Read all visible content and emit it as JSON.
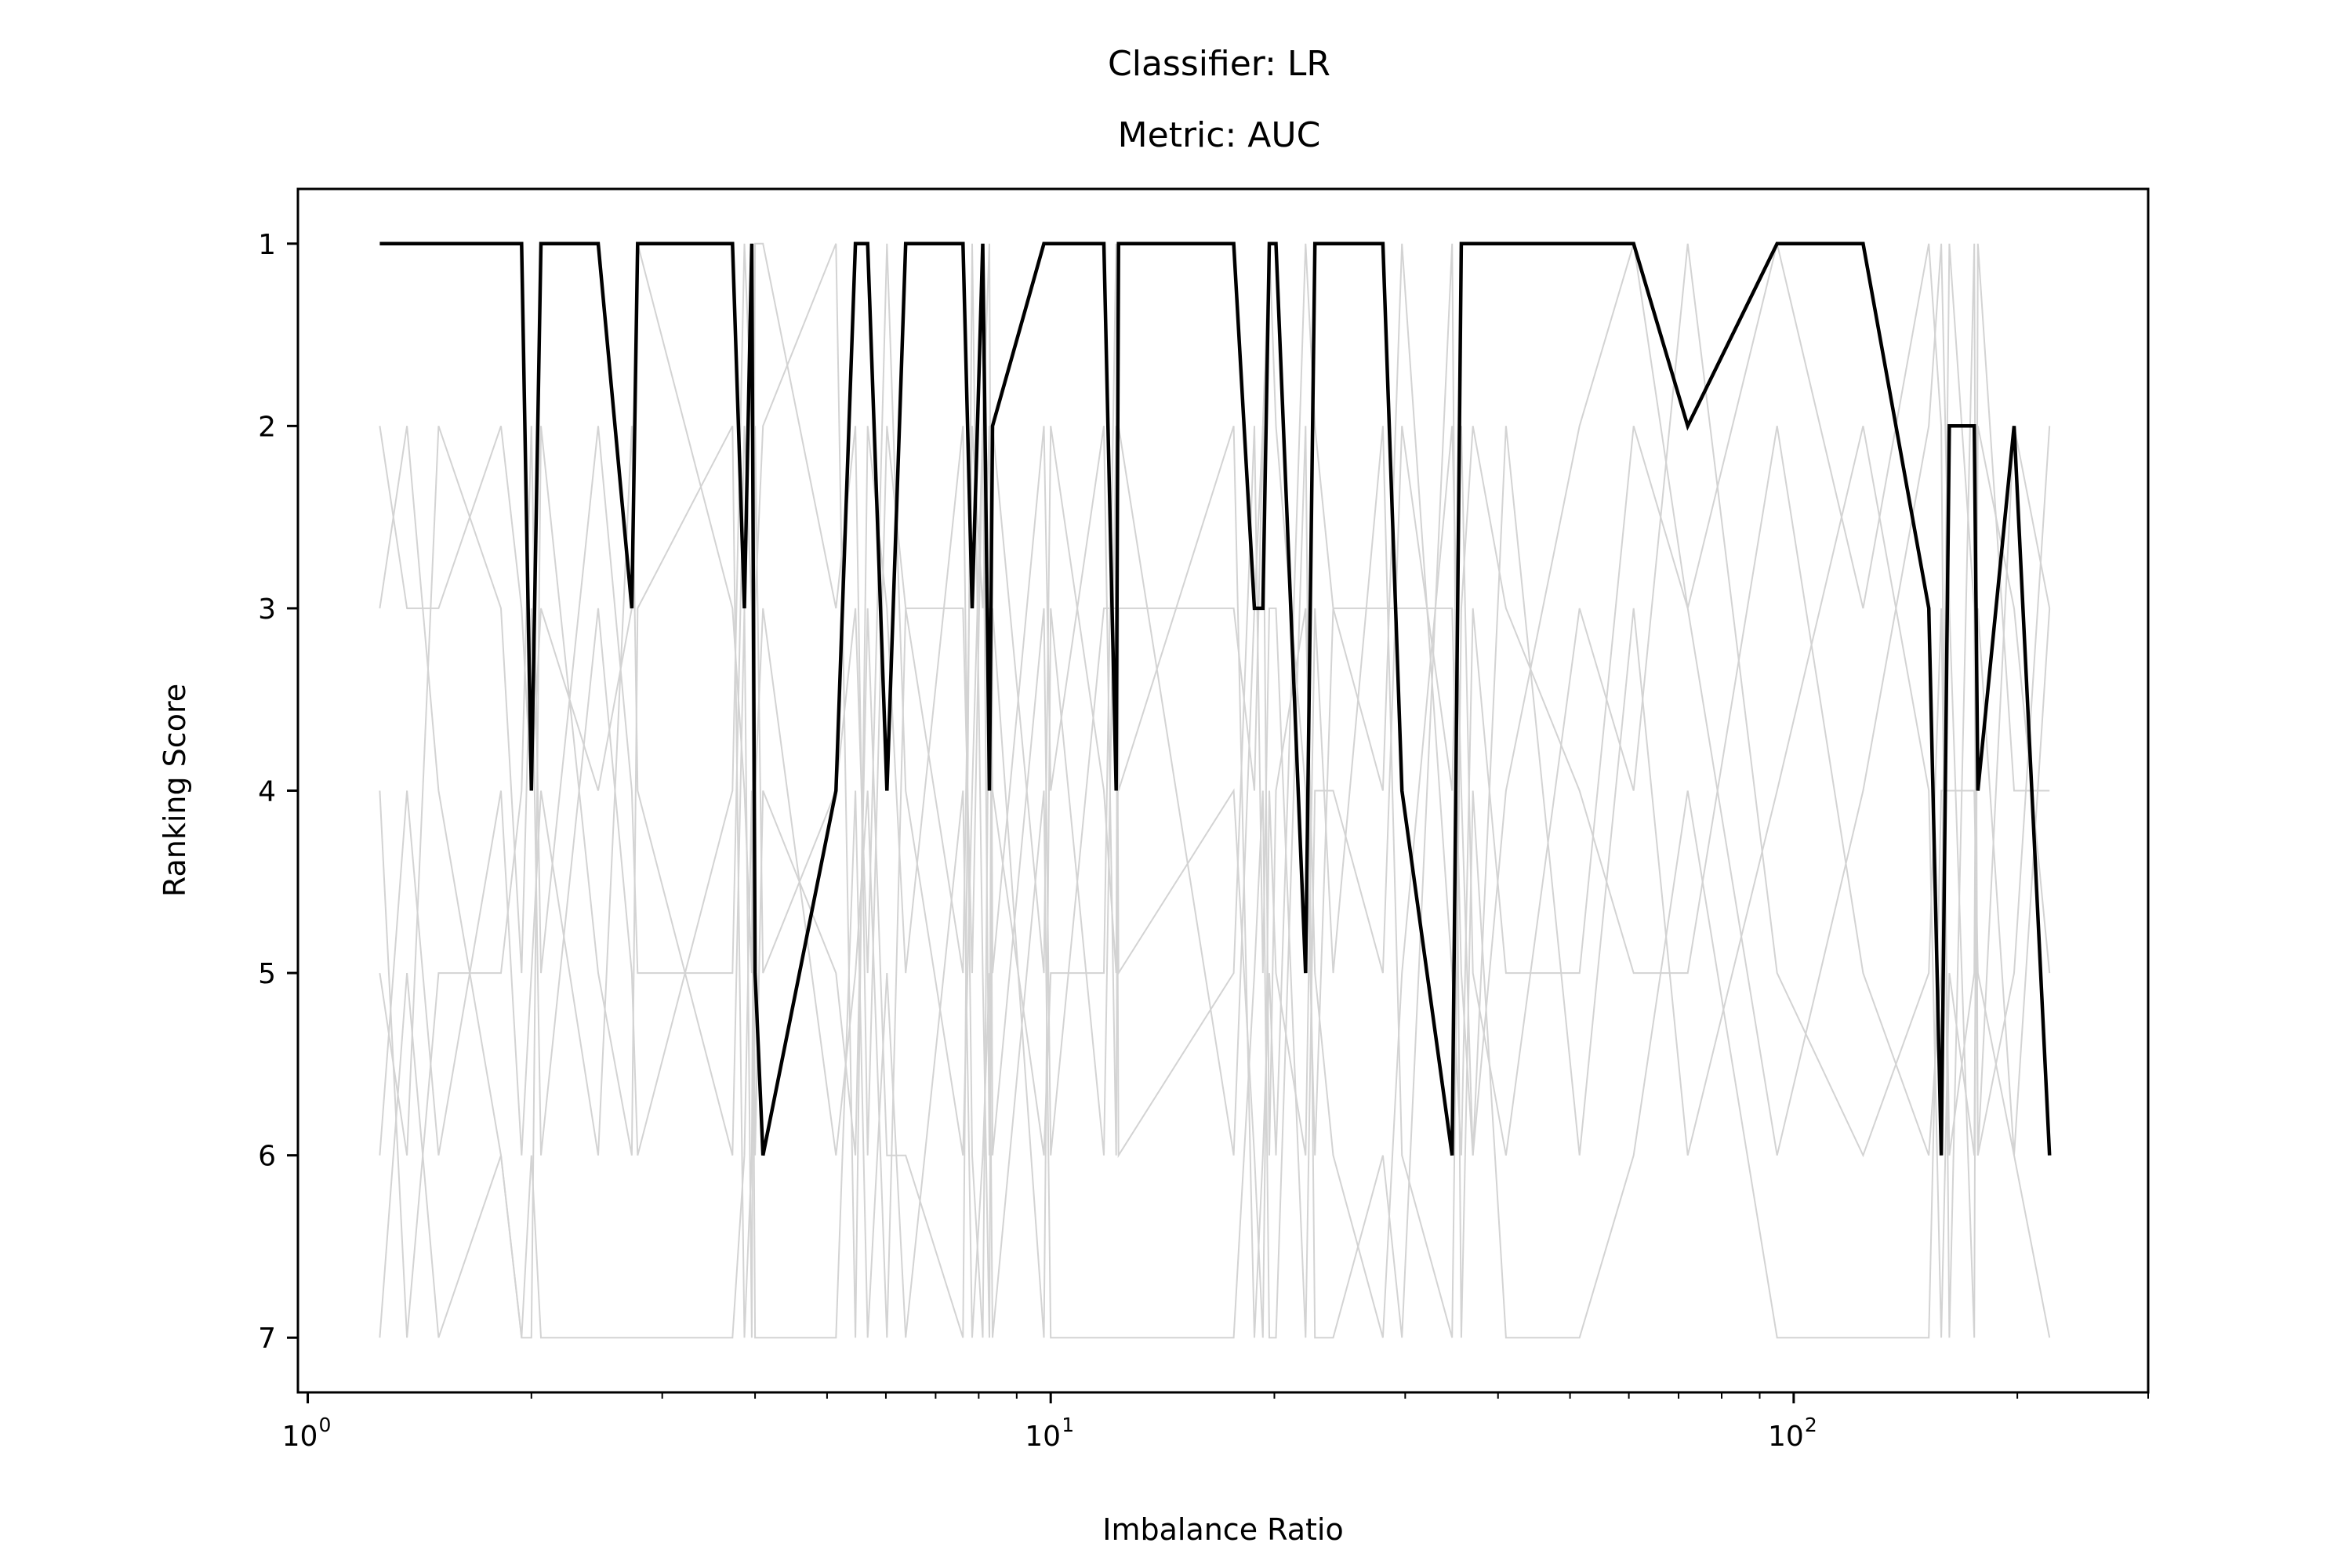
{
  "chart_data": {
    "type": "line",
    "title_lines": [
      "Classifier: LR",
      "Metric: AUC"
    ],
    "xlabel": "Imbalance Ratio",
    "ylabel": "Ranking Score",
    "xscale": "log",
    "xlim": [
      0.97,
      300
    ],
    "ylim": [
      7.3,
      0.7
    ],
    "y_inverted": true,
    "x_ticks": [
      {
        "value": 1,
        "base": "10",
        "exp": "0"
      },
      {
        "value": 10,
        "base": "10",
        "exp": "1"
      },
      {
        "value": 100,
        "base": "10",
        "exp": "2"
      }
    ],
    "y_ticks": [
      1,
      2,
      3,
      4,
      5,
      6,
      7
    ],
    "grid": false,
    "legend": "none",
    "highlight_color": "#000000",
    "background_color": "#d3d3d3",
    "x": [
      1.25,
      1.36,
      1.5,
      1.82,
      1.94,
      2.0,
      2.06,
      2.46,
      2.73,
      2.78,
      3.73,
      3.87,
      3.96,
      4.0,
      4.1,
      5.14,
      5.46,
      5.67,
      6.02,
      6.38,
      7.62,
      7.84,
      8.1,
      8.27,
      8.35,
      9.79,
      10.0,
      11.79,
      12.25,
      12.34,
      17.63,
      18.8,
      19.3,
      19.69,
      20.1,
      22.03,
      22.68,
      24.0,
      28.0,
      29.7,
      34.7,
      35.7,
      37.0,
      41.0,
      51.5,
      60.9,
      72.0,
      95.0,
      124.0,
      152.0,
      158.0,
      162.0,
      175.0,
      177.0,
      198.0,
      221.0
    ],
    "series": [
      {
        "name": "",
        "highlight": true,
        "values": [
          1,
          1,
          1,
          1,
          1,
          4,
          1,
          1,
          3,
          1,
          1,
          3,
          1,
          5,
          6,
          4,
          1,
          1,
          4,
          1,
          1,
          3,
          1,
          4,
          2,
          1,
          1,
          1,
          4,
          1,
          1,
          3,
          3,
          1,
          1,
          5,
          1,
          1,
          1,
          4,
          6,
          1,
          1,
          1,
          1,
          1,
          2,
          1,
          1,
          3,
          6,
          2,
          2,
          4,
          2,
          6
        ]
      },
      {
        "name": "",
        "highlight": false,
        "values": [
          2,
          3,
          3,
          2,
          3,
          4,
          3,
          4,
          3,
          1,
          3,
          4,
          5,
          1,
          1,
          3,
          2,
          6,
          2,
          3,
          3,
          5,
          2,
          1,
          5,
          2,
          4,
          2,
          6,
          3,
          3,
          4,
          2,
          1,
          2,
          4,
          6,
          3,
          3,
          3,
          3,
          5,
          6,
          4,
          2,
          1,
          3,
          1,
          3,
          1,
          2,
          7,
          1,
          6,
          2,
          3
        ]
      },
      {
        "name": "",
        "highlight": false,
        "values": [
          3,
          2,
          4,
          6,
          7,
          7,
          2,
          5,
          6,
          3,
          2,
          7,
          6,
          3,
          2,
          1,
          7,
          2,
          3,
          5,
          2,
          6,
          7,
          3,
          4,
          6,
          5,
          5,
          1,
          4,
          2,
          7,
          6,
          5,
          6,
          1,
          2,
          3,
          4,
          1,
          5,
          6,
          3,
          5,
          5,
          2,
          3,
          6,
          4,
          2,
          1,
          3,
          7,
          1,
          4,
          4
        ]
      },
      {
        "name": "",
        "highlight": false,
        "values": [
          4,
          7,
          5,
          5,
          4,
          2,
          5,
          2,
          4,
          5,
          5,
          2,
          3,
          6,
          4,
          5,
          6,
          3,
          6,
          6,
          7,
          1,
          5,
          7,
          3,
          7,
          3,
          6,
          2,
          5,
          4,
          6,
          7,
          4,
          5,
          6,
          3,
          5,
          2,
          6,
          7,
          3,
          2,
          3,
          4,
          5,
          5,
          2,
          5,
          6,
          5,
          1,
          3,
          6,
          5,
          2
        ]
      },
      {
        "name": "",
        "highlight": false,
        "values": [
          5,
          6,
          2,
          3,
          5,
          3,
          6,
          3,
          5,
          6,
          4,
          1,
          2,
          4,
          3,
          6,
          5,
          4,
          7,
          3,
          5,
          2,
          3,
          2,
          6,
          3,
          6,
          3,
          3,
          6,
          5,
          2,
          5,
          3,
          3,
          7,
          4,
          4,
          5,
          2,
          4,
          2,
          5,
          6,
          3,
          4,
          1,
          5,
          6,
          5,
          3,
          6,
          5,
          2,
          3,
          5
        ]
      },
      {
        "name": "",
        "highlight": false,
        "values": [
          6,
          4,
          6,
          4,
          6,
          5,
          4,
          6,
          2,
          4,
          6,
          3,
          7,
          2,
          5,
          4,
          3,
          5,
          1,
          4,
          6,
          4,
          2,
          6,
          2,
          5,
          2,
          4,
          5,
          2,
          6,
          3,
          2,
          6,
          4,
          3,
          5,
          6,
          7,
          5,
          2,
          4,
          6,
          2,
          6,
          3,
          6,
          4,
          2,
          4,
          7,
          5,
          6,
          3,
          6,
          3
        ]
      },
      {
        "name": "",
        "highlight": false,
        "values": [
          7,
          5,
          7,
          6,
          7,
          6,
          7,
          7,
          7,
          7,
          7,
          6,
          4,
          7,
          7,
          7,
          4,
          7,
          5,
          7,
          4,
          7,
          6,
          5,
          7,
          4,
          7,
          7,
          7,
          7,
          7,
          5,
          4,
          7,
          7,
          2,
          7,
          7,
          6,
          7,
          1,
          7,
          4,
          7,
          7,
          6,
          4,
          7,
          7,
          7,
          4,
          4,
          4,
          5,
          6,
          7
        ]
      }
    ]
  }
}
